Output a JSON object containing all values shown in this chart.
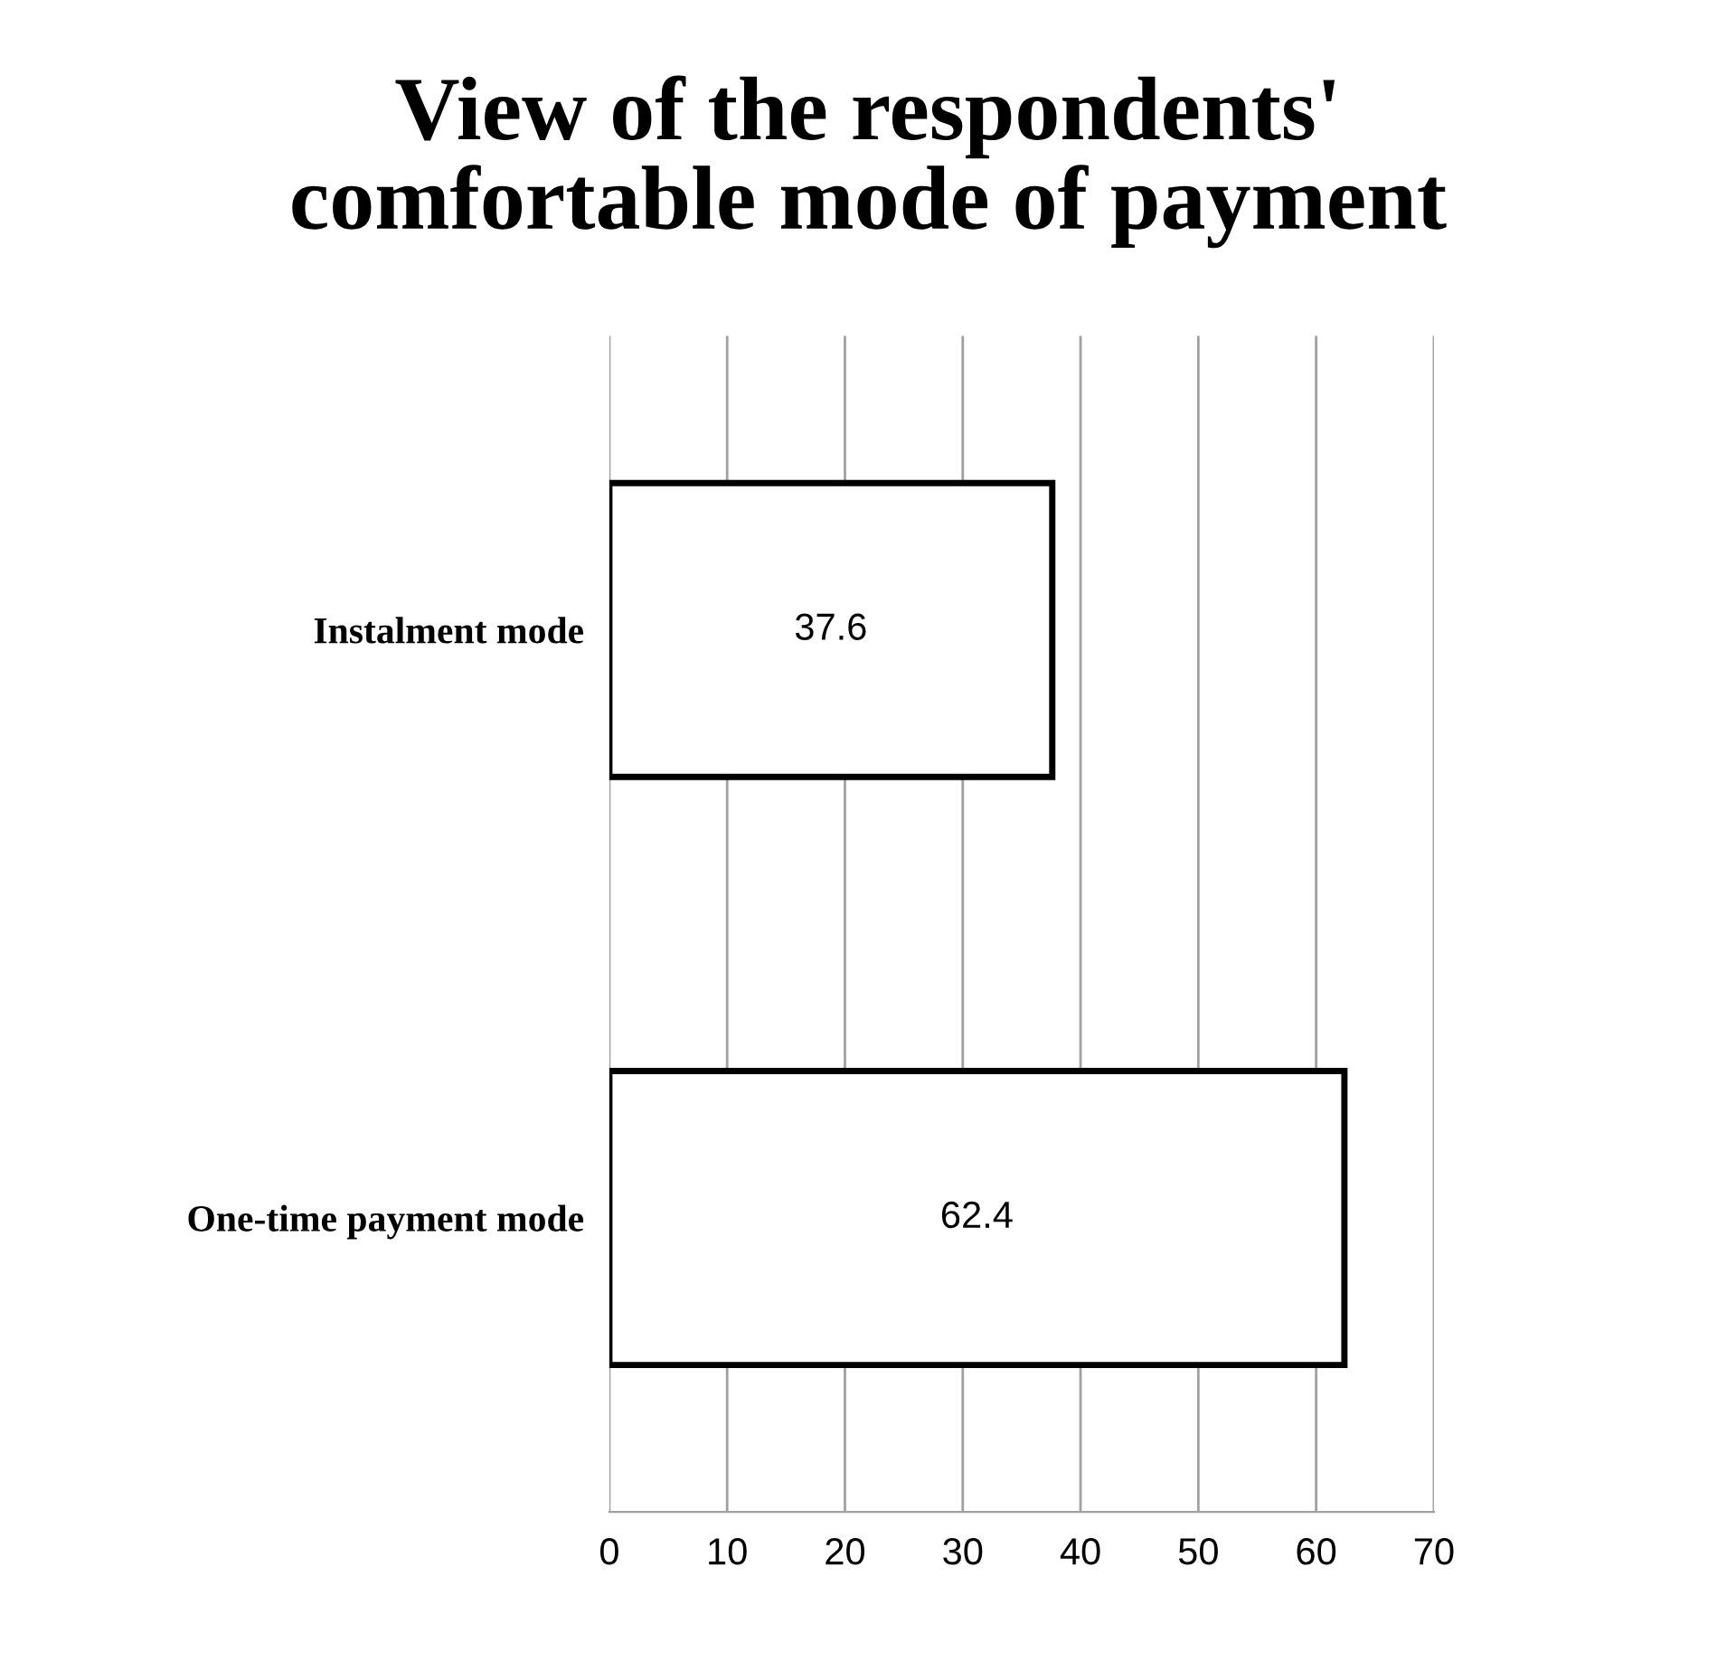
{
  "chart_data": {
    "type": "bar",
    "orientation": "horizontal",
    "title": "View of the respondents'\ncomfortable mode of payment",
    "categories": [
      "Instalment mode",
      "One-time payment mode"
    ],
    "values": [
      37.6,
      62.4
    ],
    "color": "#ffffff",
    "data_labels": true,
    "xlim": [
      0,
      70
    ],
    "xticks": [
      0,
      10,
      20,
      30,
      40,
      50,
      60,
      70
    ],
    "grid": "x",
    "legend": false
  }
}
